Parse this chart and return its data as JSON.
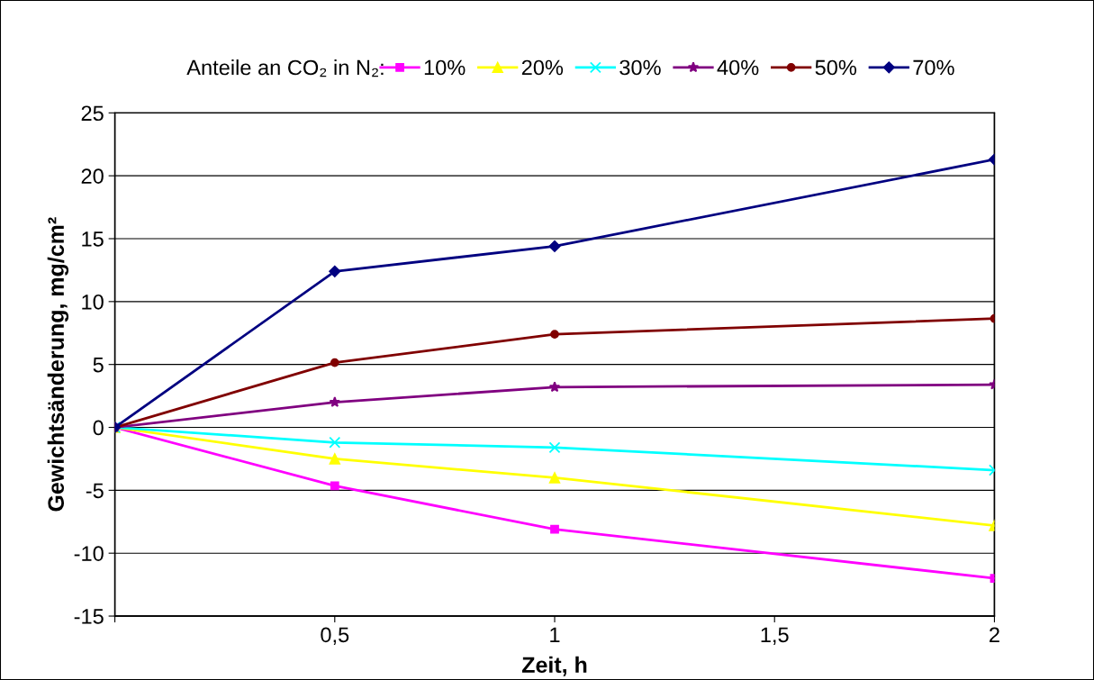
{
  "chart_data": {
    "type": "line",
    "xlabel": "Zeit, h",
    "ylabel": "Gewichtsänderung, mg/cm²",
    "legend_title": "Anteile an CO₂ in N₂:",
    "x": [
      0,
      0.5,
      1,
      2
    ],
    "series": [
      {
        "name": "10%",
        "color": "#ff00ff",
        "marker": "square",
        "values": [
          0,
          -4.65,
          -8.1,
          -12.0
        ]
      },
      {
        "name": "20%",
        "color": "#ffff00",
        "marker": "triangle",
        "values": [
          0,
          -2.5,
          -4.0,
          -7.8
        ]
      },
      {
        "name": "30%",
        "color": "#00ffff",
        "marker": "cross",
        "values": [
          0,
          -1.2,
          -1.6,
          -3.4
        ]
      },
      {
        "name": "40%",
        "color": "#800080",
        "marker": "star",
        "values": [
          0,
          2.0,
          3.2,
          3.4
        ]
      },
      {
        "name": "50%",
        "color": "#800000",
        "marker": "circle",
        "values": [
          0,
          5.15,
          7.4,
          8.65
        ]
      },
      {
        "name": "70%",
        "color": "#000080",
        "marker": "diamond",
        "values": [
          0,
          12.4,
          14.4,
          21.3
        ]
      }
    ],
    "xlim": [
      0,
      2
    ],
    "xticks": [
      {
        "value": 0,
        "label": null
      },
      {
        "value": 0.5,
        "label": "0,5"
      },
      {
        "value": 1,
        "label": "1"
      },
      {
        "value": 1.5,
        "label": "1,5"
      },
      {
        "value": 2,
        "label": "2"
      }
    ],
    "ylim": [
      -15,
      25
    ],
    "yticks": [
      -15,
      -10,
      -5,
      0,
      5,
      10,
      15,
      20,
      25
    ],
    "grid": "y",
    "legend": "top",
    "line_style": "solid"
  }
}
